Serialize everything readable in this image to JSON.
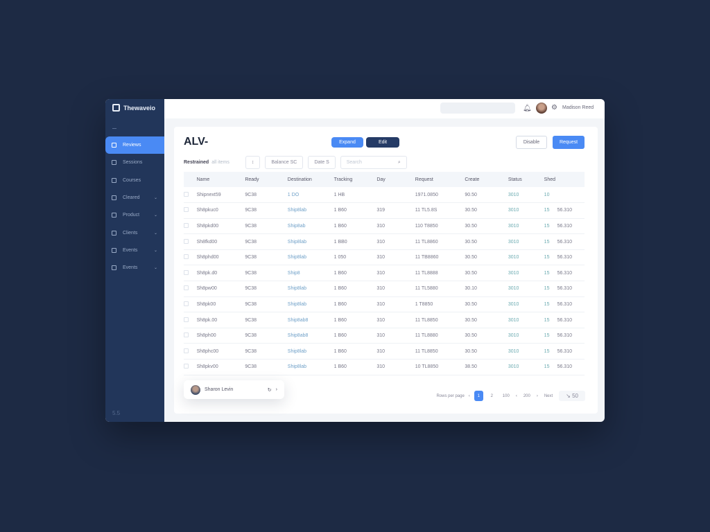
{
  "app": {
    "name": "Thewaveio"
  },
  "sidebar": {
    "items": [
      {
        "label": "Reviews",
        "active": true,
        "chevron": false
      },
      {
        "label": "Sessions",
        "chevron": false
      },
      {
        "label": "Courses",
        "chevron": false
      },
      {
        "label": "Cleared",
        "chevron": true
      },
      {
        "label": "Product",
        "chevron": true
      },
      {
        "label": "Clients",
        "chevron": true
      },
      {
        "label": "Events",
        "chevron": true
      },
      {
        "label": "Events",
        "chevron": true
      }
    ],
    "version": "5.5"
  },
  "header": {
    "user_name": "Madison Reed",
    "icons": [
      "bell-icon",
      "avatar",
      "gear-icon"
    ]
  },
  "main": {
    "title": "ALV-",
    "secondary_button": "Disable",
    "primary_button": "Request",
    "filters": {
      "label": "Restrained",
      "hint": "all items",
      "sort": "↕",
      "status": "Balance SC",
      "date": "Date S",
      "search_placeholder": "Search",
      "search_icon": "search-icon"
    },
    "columns": [
      "Name",
      "Ready",
      "Destination",
      "Tracking",
      "Day",
      "Request",
      "Create",
      "Status",
      "Shed",
      ""
    ],
    "rows": [
      [
        "Shipnext59",
        "9C38",
        "1 DO",
        "1 HB",
        "",
        "1971.0850",
        "90.50",
        "3010",
        "10",
        ""
      ],
      [
        "Sh8pkuc0",
        "9C38",
        "Ship8lab",
        "1 B60",
        "319",
        "11 TL5.8S",
        "30.50",
        "3010",
        "15",
        "56.310"
      ],
      [
        "Sh8pkd00",
        "9C38",
        "Ship8ab",
        "1 B60",
        "310",
        "110 T8850",
        "30.50",
        "3010",
        "15",
        "56.310"
      ],
      [
        "Sh8fkd00",
        "9C38",
        "Ship8lab",
        "1 BB0",
        "310",
        "11 TL8860",
        "30.50",
        "3010",
        "15",
        "56.310"
      ],
      [
        "Sh8phd00",
        "9C38",
        "Ship8lab",
        "1 050",
        "310",
        "11 TB8860",
        "30.50",
        "3010",
        "15",
        "56.310"
      ],
      [
        "Sh8pk.d0",
        "9C38",
        "Ship8",
        "1 B60",
        "310",
        "11 TL8888",
        "30.50",
        "3010",
        "15",
        "56.310"
      ],
      [
        "Sh8pw00",
        "9C38",
        "Ship8lab",
        "1 B60",
        "310",
        "11 TL5880",
        "30.10",
        "3010",
        "15",
        "56.310"
      ],
      [
        "Sh8pk00",
        "9C38",
        "Ship8lab",
        "1 B60",
        "310",
        "1 T8850",
        "30.50",
        "3010",
        "15",
        "56.310"
      ],
      [
        "Sh8pk.00",
        "9C38",
        "Ship8ab8",
        "1 B60",
        "310",
        "11 TL8850",
        "30.50",
        "3010",
        "15",
        "56.310"
      ],
      [
        "Sh8ph00",
        "9C38",
        "Ship8ab8",
        "1 B60",
        "310",
        "11 TL8880",
        "30.50",
        "3010",
        "15",
        "56.310"
      ],
      [
        "Sh8phc00",
        "9C38",
        "Ship8lab",
        "1 B60",
        "310",
        "11 TL8850",
        "30.50",
        "3010",
        "15",
        "56.310"
      ],
      [
        "Sh8pkv00",
        "9C38",
        "Ship8lab",
        "1 B60",
        "310",
        "10 TL8850",
        "38.50",
        "3010",
        "15",
        "56.310"
      ]
    ],
    "row_actions": {
      "expand": "Expand",
      "edit": "Edit"
    },
    "popover": {
      "name": "Sharon Levin",
      "icons": [
        "refresh-icon",
        "chevron-right-icon"
      ]
    },
    "pagination": {
      "label": "Rows per page",
      "pages": [
        "1",
        "2",
        "100",
        "200",
        "Next"
      ],
      "current": "1",
      "next_label": "↘ 50"
    }
  },
  "colors": {
    "accent": "#4a8af4",
    "sidebar": "#22365a",
    "background": "#1d2a44"
  }
}
